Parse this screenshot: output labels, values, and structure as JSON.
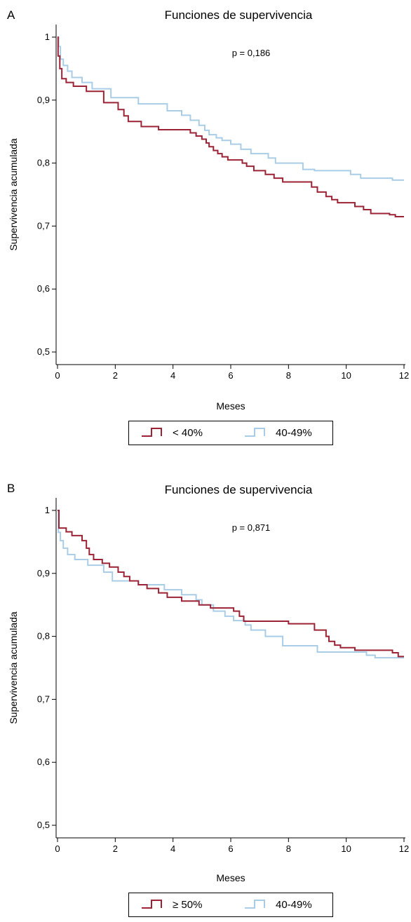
{
  "colors": {
    "series1": "#9b2335",
    "series2": "#a9cde6"
  },
  "chart_data": [
    {
      "type": "line",
      "panel_label": "A",
      "title": "Funciones de supervivencia",
      "xlabel": "Meses",
      "ylabel": "Supervivencia acumulada",
      "annotation": "p = 0,186",
      "xlim": [
        0,
        12
      ],
      "ylim": [
        0.48,
        1.02
      ],
      "xticks": [
        0,
        2,
        4,
        6,
        8,
        10,
        12
      ],
      "xtick_labels": [
        "0",
        "2",
        "4",
        "6",
        "8",
        "10",
        "12"
      ],
      "yticks": [
        0.5,
        0.6,
        0.7,
        0.8,
        0.9,
        1.0
      ],
      "ytick_labels": [
        "0,5",
        "0,6",
        "0,7",
        "0,8",
        "0,9",
        "1"
      ],
      "step": true,
      "series": [
        {
          "name": "< 40%",
          "color": "#9b2335",
          "x": [
            0,
            0.02,
            0.08,
            0.15,
            0.3,
            0.55,
            1.0,
            1.6,
            2.1,
            2.3,
            2.45,
            2.9,
            3.5,
            4.6,
            4.8,
            5.0,
            5.15,
            5.25,
            5.4,
            5.55,
            5.7,
            5.9,
            6.4,
            6.55,
            6.8,
            7.2,
            7.5,
            7.8,
            8.8,
            9.0,
            9.3,
            9.5,
            9.7,
            10.3,
            10.6,
            10.85,
            11.5,
            11.7,
            12.0
          ],
          "y": [
            1.0,
            0.97,
            0.95,
            0.934,
            0.928,
            0.922,
            0.914,
            0.896,
            0.885,
            0.875,
            0.866,
            0.858,
            0.853,
            0.848,
            0.843,
            0.838,
            0.832,
            0.826,
            0.82,
            0.815,
            0.81,
            0.805,
            0.8,
            0.795,
            0.788,
            0.782,
            0.776,
            0.77,
            0.762,
            0.754,
            0.747,
            0.742,
            0.737,
            0.731,
            0.726,
            0.72,
            0.718,
            0.715,
            0.715
          ]
        },
        {
          "name": "40-49%",
          "color": "#a9cde6",
          "x": [
            0,
            0.04,
            0.1,
            0.2,
            0.35,
            0.5,
            0.85,
            1.2,
            1.85,
            2.8,
            3.8,
            4.3,
            4.6,
            4.9,
            5.1,
            5.25,
            5.5,
            5.7,
            6.0,
            6.35,
            6.7,
            7.3,
            7.55,
            8.5,
            8.9,
            10.15,
            10.5,
            11.6,
            12.0
          ],
          "y": [
            1.0,
            0.985,
            0.965,
            0.955,
            0.946,
            0.936,
            0.928,
            0.918,
            0.904,
            0.894,
            0.883,
            0.876,
            0.868,
            0.86,
            0.852,
            0.845,
            0.84,
            0.836,
            0.83,
            0.822,
            0.815,
            0.808,
            0.8,
            0.79,
            0.788,
            0.782,
            0.776,
            0.773,
            0.773
          ]
        }
      ],
      "legend": [
        "< 40%",
        "40-49%"
      ]
    },
    {
      "type": "line",
      "panel_label": "B",
      "title": "Funciones de supervivencia",
      "xlabel": "Meses",
      "ylabel": "Supervivencia acumulada",
      "annotation": "p = 0,871",
      "xlim": [
        0,
        12
      ],
      "ylim": [
        0.48,
        1.02
      ],
      "xticks": [
        0,
        2,
        4,
        6,
        8,
        10,
        12
      ],
      "xtick_labels": [
        "0",
        "2",
        "4",
        "6",
        "8",
        "10",
        "12"
      ],
      "yticks": [
        0.5,
        0.6,
        0.7,
        0.8,
        0.9,
        1.0
      ],
      "ytick_labels": [
        "0,5",
        "0,6",
        "0,7",
        "0,8",
        "0,9",
        "1"
      ],
      "step": true,
      "series": [
        {
          "name": "≥ 50%",
          "color": "#9b2335",
          "x": [
            0,
            0.05,
            0.3,
            0.5,
            0.85,
            1.0,
            1.1,
            1.25,
            1.55,
            1.8,
            2.1,
            2.3,
            2.5,
            2.8,
            3.1,
            3.5,
            3.8,
            4.3,
            4.9,
            5.3,
            6.1,
            6.3,
            6.45,
            8.0,
            8.9,
            9.3,
            9.4,
            9.6,
            9.8,
            10.3,
            11.6,
            11.8,
            12.0
          ],
          "y": [
            1.0,
            0.972,
            0.966,
            0.96,
            0.952,
            0.94,
            0.93,
            0.922,
            0.916,
            0.91,
            0.902,
            0.895,
            0.888,
            0.882,
            0.876,
            0.869,
            0.862,
            0.856,
            0.85,
            0.845,
            0.84,
            0.832,
            0.824,
            0.82,
            0.81,
            0.8,
            0.792,
            0.786,
            0.782,
            0.778,
            0.774,
            0.768,
            0.768
          ]
        },
        {
          "name": "40-49%",
          "color": "#a9cde6",
          "x": [
            0,
            0.03,
            0.1,
            0.2,
            0.35,
            0.6,
            1.05,
            1.6,
            1.9,
            2.8,
            3.7,
            4.3,
            4.8,
            5.0,
            5.4,
            5.8,
            6.1,
            6.5,
            6.7,
            7.2,
            7.8,
            9.0,
            10.7,
            11.0,
            12.0
          ],
          "y": [
            1.0,
            0.965,
            0.952,
            0.94,
            0.93,
            0.922,
            0.913,
            0.902,
            0.888,
            0.882,
            0.874,
            0.866,
            0.858,
            0.85,
            0.84,
            0.832,
            0.825,
            0.818,
            0.81,
            0.8,
            0.785,
            0.775,
            0.77,
            0.766,
            0.766
          ]
        }
      ],
      "legend": [
        "≥ 50%",
        "40-49%"
      ]
    }
  ]
}
